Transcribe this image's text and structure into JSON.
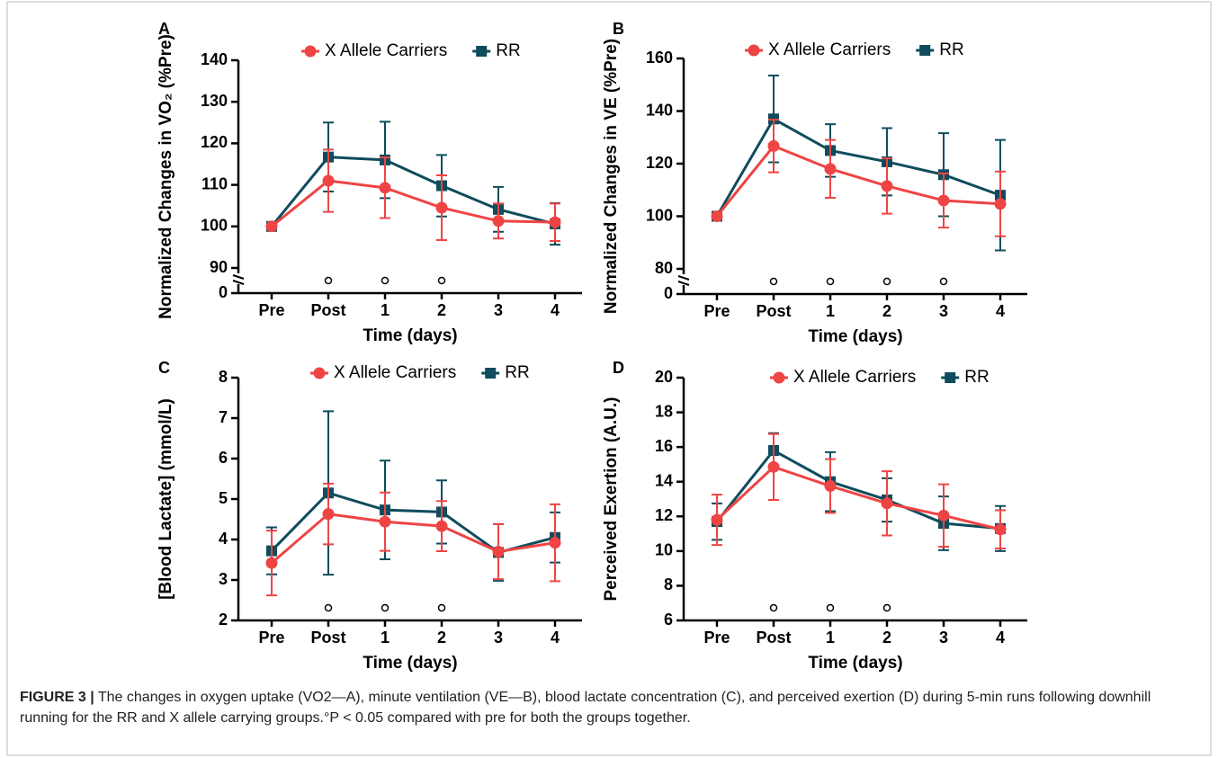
{
  "chart_data": [
    {
      "type": "line",
      "panel": "A",
      "y_label": "Normalized Changes in VO₂ (%Pre)",
      "x_label": "Time (days)",
      "categories": [
        "Pre",
        "Post",
        "1",
        "2",
        "3",
        "4"
      ],
      "ylim": [
        0,
        140
      ],
      "yticks": [
        0,
        90,
        100,
        110,
        120,
        130,
        140
      ],
      "broken_axis": true,
      "significant": [
        false,
        true,
        true,
        true,
        false,
        false
      ],
      "series": [
        {
          "name": "X Allele Carriers",
          "color": "#ef4444",
          "marker": "circle",
          "values": [
            100,
            111,
            109.3,
            104.5,
            101.3,
            101
          ],
          "errors": [
            0,
            7.5,
            7.3,
            7.8,
            4.2,
            4.5
          ]
        },
        {
          "name": "RR",
          "color": "#0f4c5c",
          "marker": "square",
          "values": [
            100,
            116.7,
            116,
            109.8,
            104.1,
            100.6
          ],
          "errors": [
            0,
            8.3,
            9.2,
            7.4,
            5.4,
            5
          ]
        }
      ]
    },
    {
      "type": "line",
      "panel": "B",
      "y_label": "Normalized Changes in VE (%Pre)",
      "x_label": "Time (days)",
      "categories": [
        "Pre",
        "Post",
        "1",
        "2",
        "3",
        "4"
      ],
      "ylim": [
        0,
        160
      ],
      "yticks": [
        0,
        80,
        100,
        120,
        140,
        160
      ],
      "broken_axis": true,
      "significant": [
        false,
        true,
        true,
        true,
        true,
        false
      ],
      "series": [
        {
          "name": "X Allele Carriers",
          "color": "#ef4444",
          "marker": "circle",
          "values": [
            100,
            126.7,
            118,
            111.5,
            106,
            104.7
          ],
          "errors": [
            0,
            10,
            11,
            10.5,
            10.3,
            12.3
          ]
        },
        {
          "name": "RR",
          "color": "#0f4c5c",
          "marker": "square",
          "values": [
            100,
            137,
            125,
            120.7,
            115.8,
            108
          ],
          "errors": [
            0,
            16.5,
            10,
            12.8,
            15.8,
            21
          ]
        }
      ]
    },
    {
      "type": "line",
      "panel": "C",
      "y_label": "[Blood Lactate] (mmol/L)",
      "x_label": "Time (days)",
      "categories": [
        "Pre",
        "Post",
        "1",
        "2",
        "3",
        "4"
      ],
      "ylim": [
        2,
        8
      ],
      "yticks": [
        2,
        3,
        4,
        5,
        6,
        7,
        8
      ],
      "broken_axis": false,
      "significant": [
        false,
        true,
        true,
        true,
        false,
        false
      ],
      "series": [
        {
          "name": "X Allele Carriers",
          "color": "#ef4444",
          "marker": "circle",
          "values": [
            3.42,
            4.63,
            4.44,
            4.33,
            3.7,
            3.92
          ],
          "errors": [
            0.8,
            0.75,
            0.72,
            0.62,
            0.68,
            0.95
          ]
        },
        {
          "name": "RR",
          "color": "#0f4c5c",
          "marker": "square",
          "values": [
            3.72,
            5.15,
            4.73,
            4.68,
            3.68,
            4.05
          ],
          "errors": [
            0.58,
            2.02,
            1.22,
            0.78,
            0.7,
            0.62
          ]
        }
      ]
    },
    {
      "type": "line",
      "panel": "D",
      "y_label": "Perceived Exertion (A.U.)",
      "x_label": "Time (days)",
      "categories": [
        "Pre",
        "Post",
        "1",
        "2",
        "3",
        "4"
      ],
      "ylim": [
        6,
        20
      ],
      "yticks": [
        6,
        8,
        10,
        12,
        14,
        16,
        18,
        20
      ],
      "broken_axis": false,
      "significant": [
        false,
        true,
        true,
        true,
        false,
        false
      ],
      "series": [
        {
          "name": "X Allele Carriers",
          "color": "#ef4444",
          "marker": "circle",
          "values": [
            11.8,
            14.85,
            13.75,
            12.75,
            12.05,
            11.25
          ],
          "errors": [
            1.45,
            1.9,
            1.55,
            1.85,
            1.8,
            1.1
          ]
        },
        {
          "name": "RR",
          "color": "#0f4c5c",
          "marker": "square",
          "values": [
            11.7,
            15.8,
            14,
            12.95,
            11.6,
            11.3
          ],
          "errors": [
            1.05,
            1,
            1.7,
            1.25,
            1.55,
            1.3
          ]
        }
      ]
    }
  ],
  "caption": {
    "label": "FIGURE 3 |",
    "text": "The changes in oxygen uptake (VO2—A), minute ventilation (VE—B), blood lactate concentration (C), and perceived exertion (D) during 5-min runs following downhill running for the RR and X allele carrying groups.°P < 0.05 compared with pre for both the groups together."
  }
}
